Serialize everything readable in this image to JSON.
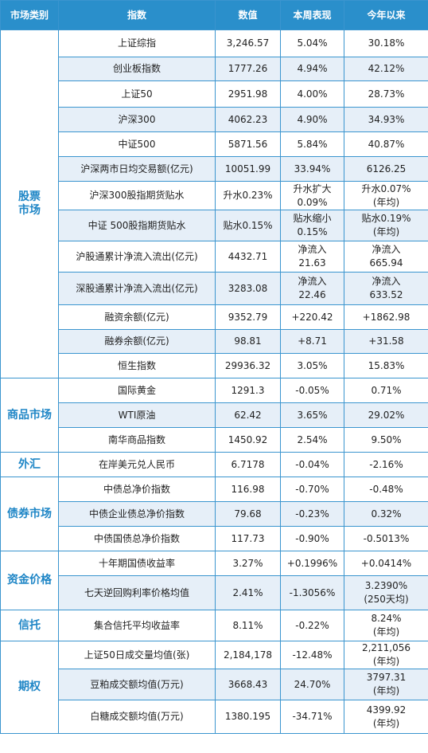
{
  "header": [
    "市场类别",
    "指数",
    "数值",
    "本周表现",
    "今年以来"
  ],
  "groups": [
    {
      "category": [
        "股票",
        "市场"
      ],
      "rows": [
        [
          "上证综指",
          "3,246.57",
          "5.04%",
          "30.18%"
        ],
        [
          "创业板指数",
          "1777.26",
          "4.94%",
          "42.12%"
        ],
        [
          "上证50",
          "2951.98",
          "4.00%",
          "28.73%"
        ],
        [
          "沪深300",
          "4062.23",
          "4.90%",
          "34.93%"
        ],
        [
          "中证500",
          "5871.56",
          "5.84%",
          "40.87%"
        ],
        [
          "沪深两市日均交易额(亿元)",
          "10051.99",
          "33.94%",
          "6126.25"
        ],
        [
          "沪深300股指期货贴水",
          "升水0.23%",
          [
            "升水扩大",
            "0.09%"
          ],
          [
            "升水0.07%",
            "(年均)"
          ]
        ],
        [
          "中证 500股指期货贴水",
          "贴水0.15%",
          [
            "贴水缩小",
            "0.15%"
          ],
          [
            "贴水0.19%",
            "(年均)"
          ]
        ],
        [
          "沪股通累计净流入流出(亿元)",
          "4432.71",
          [
            "净流入",
            "21.63"
          ],
          [
            "净流入",
            "665.94"
          ]
        ],
        [
          "深股通累计净流入流出(亿元)",
          "3283.08",
          [
            "净流入",
            "22.46"
          ],
          [
            "净流入",
            "633.52"
          ]
        ],
        [
          "融资余额(亿元)",
          "9352.79",
          "+220.42",
          "+1862.98"
        ],
        [
          "融券余额(亿元)",
          "98.81",
          "+8.71",
          "+31.58"
        ],
        [
          "恒生指数",
          "29936.32",
          "3.05%",
          "15.83%"
        ]
      ]
    },
    {
      "category": [
        "商品市场"
      ],
      "rows": [
        [
          "国际黄金",
          "1291.3",
          "-0.05%",
          "0.71%"
        ],
        [
          "WTI原油",
          "62.42",
          "3.65%",
          "29.02%"
        ],
        [
          "南华商品指数",
          "1450.92",
          "2.54%",
          "9.50%"
        ]
      ]
    },
    {
      "category": [
        "外汇"
      ],
      "rows": [
        [
          "在岸美元兑人民币",
          "6.7178",
          "-0.04%",
          "-2.16%"
        ]
      ]
    },
    {
      "category": [
        "债券市场"
      ],
      "rows": [
        [
          "中债总净价指数",
          "116.98",
          "-0.70%",
          "-0.48%"
        ],
        [
          "中债企业债总净价指数",
          "79.68",
          "-0.23%",
          "0.32%"
        ],
        [
          "中债国债总净价指数",
          "117.73",
          "-0.90%",
          "-0.5013%"
        ]
      ]
    },
    {
      "category": [
        "资金价格"
      ],
      "rows": [
        [
          "十年期国债收益率",
          "3.27%",
          "+0.1996%",
          "+0.0414%"
        ],
        [
          "七天逆回购利率价格均值",
          "2.41%",
          "-1.3056%",
          [
            "3.2390%",
            "(250天均)"
          ]
        ]
      ]
    },
    {
      "category": [
        "信托"
      ],
      "rows": [
        [
          "集合信托平均收益率",
          "8.11%",
          "-0.22%",
          [
            "8.24%",
            "(年均)"
          ]
        ]
      ]
    },
    {
      "category": [
        "期权"
      ],
      "rows": [
        [
          "上证50日成交量均值(张)",
          "2,184,178",
          "-12.48%",
          [
            "2,211,056",
            "(年均)"
          ]
        ],
        [
          "豆粕成交额均值(万元)",
          "3668.43",
          "24.70%",
          [
            "3797.31",
            "(年均)"
          ]
        ],
        [
          "白糖成交额均值(万元)",
          "1380.195",
          "-34.71%",
          [
            "4399.92",
            "(年均)"
          ]
        ]
      ]
    }
  ]
}
